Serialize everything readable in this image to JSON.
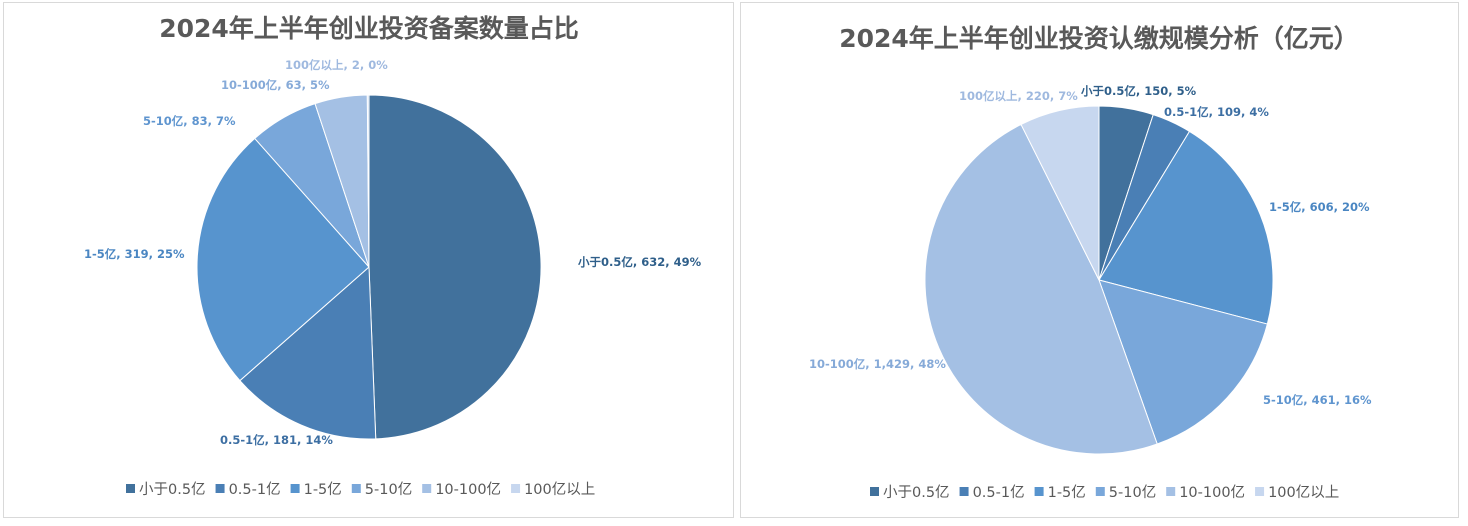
{
  "chart_data": [
    {
      "type": "pie",
      "title": "2024年上半年创业投资备案数量占比",
      "categories": [
        "小于0.5亿",
        "0.5-1亿",
        "1-5亿",
        "5-10亿",
        "10-100亿",
        "100亿以上"
      ],
      "values": [
        632,
        181,
        319,
        83,
        63,
        2
      ],
      "percent_labels": [
        "49%",
        "14%",
        "25%",
        "7%",
        "5%",
        "0%"
      ],
      "data_labels": [
        "小于0.5亿, 632, 49%",
        "0.5-1亿, 181, 14%",
        "1-5亿, 319, 25%",
        "5-10亿, 83, 7%",
        "10-100亿, 63, 5%",
        "100亿以上, 2, 0%"
      ],
      "colors": [
        "#41719c",
        "#4a7fb5",
        "#5794ce",
        "#79a7da",
        "#a4c0e4",
        "#c7d7ef"
      ],
      "legend": "bottom"
    },
    {
      "type": "pie",
      "title": "2024年上半年创业投资认缴规模分析（亿元）",
      "categories": [
        "小于0.5亿",
        "0.5-1亿",
        "1-5亿",
        "5-10亿",
        "10-100亿",
        "100亿以上"
      ],
      "values": [
        150,
        109,
        606,
        461,
        1429,
        220
      ],
      "percent_labels": [
        "5%",
        "4%",
        "20%",
        "16%",
        "48%",
        "7%"
      ],
      "data_labels": [
        "小于0.5亿, 150, 5%",
        "0.5-1亿, 109, 4%",
        "1-5亿, 606, 20%",
        "5-10亿, 461, 16%",
        "10-100亿, 1,429, 48%",
        "100亿以上, 220, 7%"
      ],
      "colors": [
        "#41719c",
        "#4a7fb5",
        "#5794ce",
        "#79a7da",
        "#a4c0e4",
        "#c7d7ef"
      ],
      "legend": "bottom"
    }
  ]
}
